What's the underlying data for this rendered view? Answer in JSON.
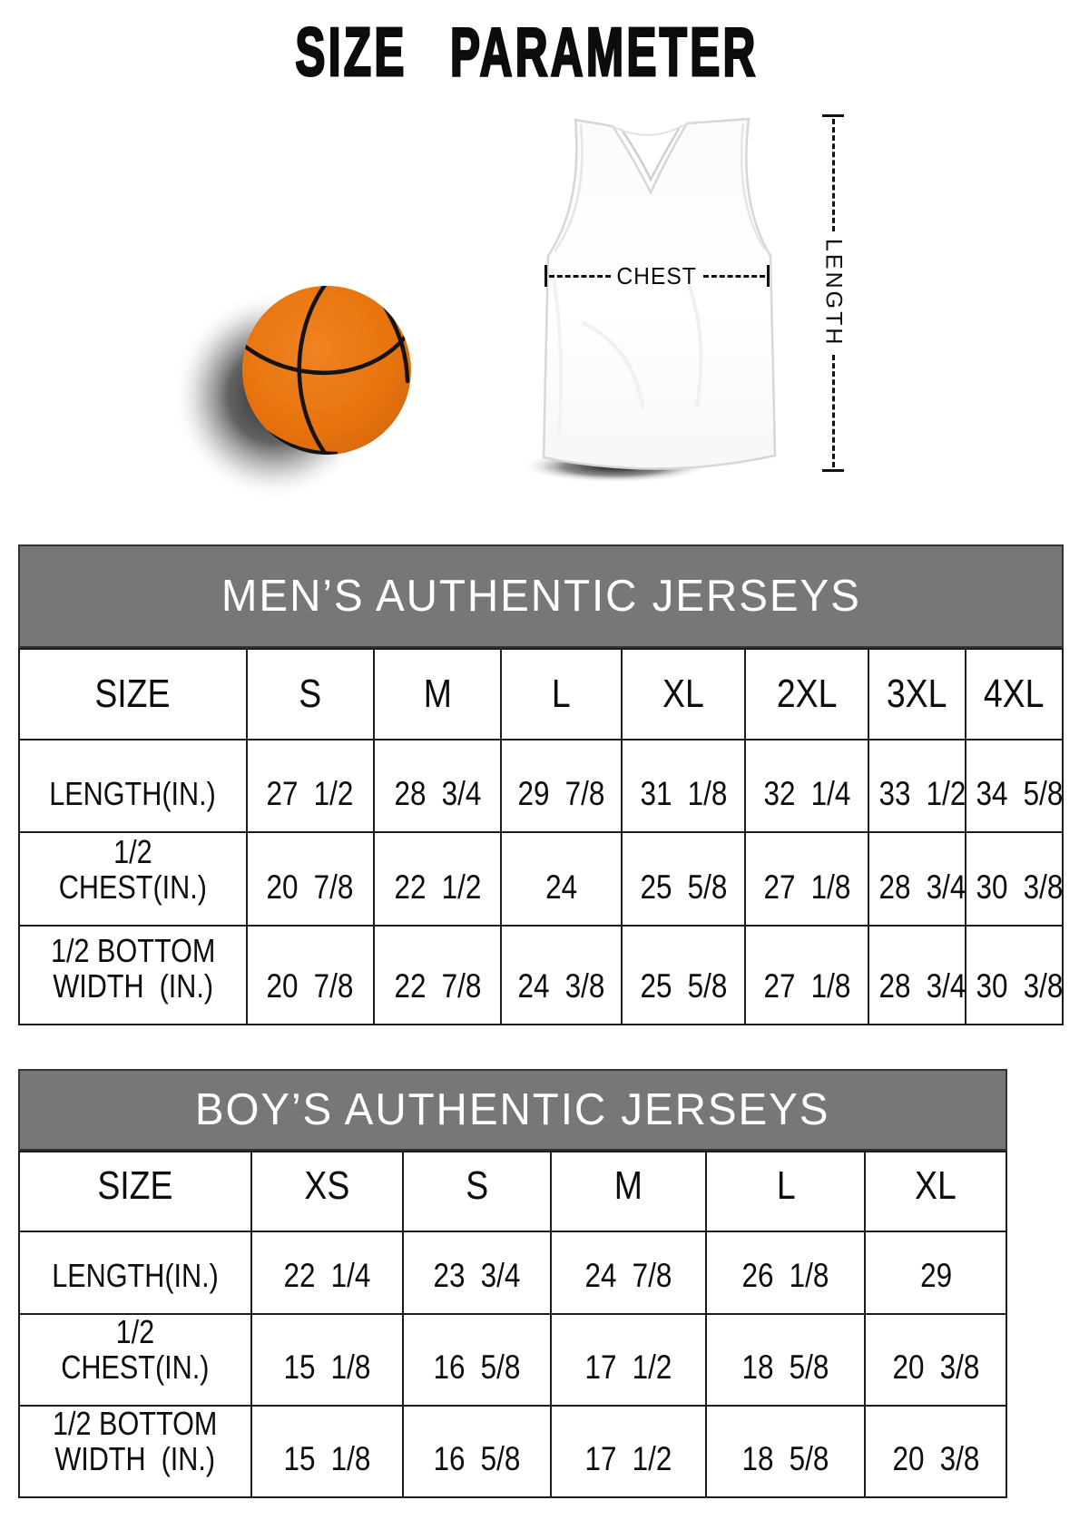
{
  "page": {
    "title": "SIZE PARAMETER"
  },
  "diagram": {
    "chest_label": "CHEST",
    "length_label": "LENGTH"
  },
  "men_table": {
    "title": "MEN’S AUTHENTIC JERSEYS",
    "header": [
      "SIZE",
      "S",
      "M",
      "L",
      "XL",
      "2XL",
      "3XL",
      "4XL"
    ],
    "rows": [
      [
        "LENGTH(IN.)",
        "27 1/2",
        "28 3/4",
        "29 7/8",
        "31 1/8",
        "32 1/4",
        "33 1/2",
        "34 5/8"
      ],
      [
        "1/2 CHEST(IN.)",
        "20 7/8",
        "22 1/2",
        "24",
        "25 5/8",
        "27 1/8",
        "28 3/4",
        "30 3/8"
      ],
      [
        "1/2 BOTTOM\nWIDTH  (IN.)",
        "20 7/8",
        "22 7/8",
        "24 3/8",
        "25 5/8",
        "27 1/8",
        "28 3/4",
        "30 3/8"
      ]
    ]
  },
  "boys_table": {
    "title": "BOY’S AUTHENTIC JERSEYS",
    "header": [
      "SIZE",
      "XS",
      "S",
      "M",
      "L",
      "XL"
    ],
    "rows": [
      [
        "LENGTH(IN.)",
        "22 1/4",
        "23 3/4",
        "24 7/8",
        "26 1/8",
        "29"
      ],
      [
        "1/2 CHEST(IN.)",
        "15 1/8",
        "16 5/8",
        "17 1/2",
        "18 5/8",
        "20 3/8"
      ],
      [
        "1/2 BOTTOM\nWIDTH  (IN.)",
        "15 1/8",
        "16 5/8",
        "17 1/2",
        "18 5/8",
        "20 3/8"
      ]
    ]
  },
  "colors": {
    "header_bar_bg": "#777777",
    "header_bar_text": "#ffffff",
    "table_border": "#1c1c1c",
    "text": "#0d0d0d",
    "basketball_orange": "#e8740e"
  }
}
